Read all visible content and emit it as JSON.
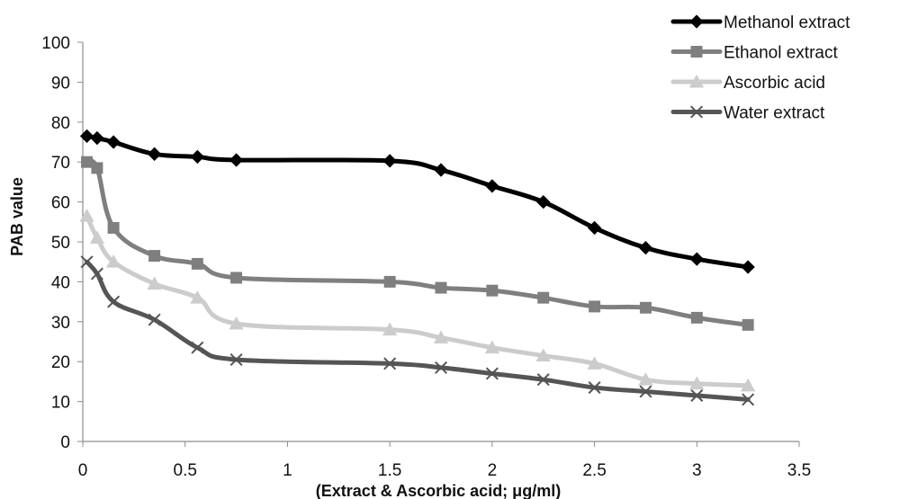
{
  "chart_data": {
    "type": "line",
    "title": "",
    "xlabel": "(Extract & Ascorbic acid; μg/ml)",
    "ylabel": "PAB value",
    "xlim": [
      0,
      3.5
    ],
    "ylim": [
      0,
      100
    ],
    "xticks": [
      "0",
      "0.5",
      "1",
      "1.5",
      "2",
      "2.5",
      "3",
      "3.5"
    ],
    "yticks": [
      "0",
      "10",
      "20",
      "30",
      "40",
      "50",
      "60",
      "70",
      "80",
      "90",
      "100"
    ],
    "grid": false,
    "legend_position": "top-right",
    "series": [
      {
        "name": "Methanol extract",
        "color": "#000000",
        "marker": "diamond",
        "x": [
          0.02,
          0.07,
          0.15,
          0.35,
          0.56,
          0.75,
          1.5,
          1.75,
          2.0,
          2.25,
          2.5,
          2.75,
          3.0,
          3.25
        ],
        "values": [
          76.5,
          76,
          75,
          72,
          71.3,
          70.5,
          70.3,
          68,
          64,
          60,
          53.5,
          48.5,
          45.7,
          43.7
        ]
      },
      {
        "name": "Ethanol extract",
        "color": "#7f7f7f",
        "marker": "square",
        "x": [
          0.02,
          0.07,
          0.15,
          0.35,
          0.56,
          0.75,
          1.5,
          1.75,
          2.0,
          2.25,
          2.5,
          2.75,
          3.0,
          3.25
        ],
        "values": [
          70,
          68.5,
          53.5,
          46.5,
          44.5,
          41,
          40,
          38.5,
          37.8,
          36,
          33.8,
          33.5,
          31,
          29.2
        ]
      },
      {
        "name": "Ascorbic acid",
        "color": "#cccccc",
        "marker": "triangle",
        "x": [
          0.02,
          0.07,
          0.15,
          0.35,
          0.56,
          0.75,
          1.5,
          1.75,
          2.0,
          2.25,
          2.5,
          2.75,
          3.0,
          3.25
        ],
        "values": [
          56.5,
          51,
          45,
          39.5,
          36,
          29.5,
          28,
          26,
          23.5,
          21.5,
          19.5,
          15.5,
          14.5,
          14
        ]
      },
      {
        "name": "Water extract",
        "color": "#555555",
        "marker": "x",
        "x": [
          0.02,
          0.07,
          0.15,
          0.35,
          0.56,
          0.75,
          1.5,
          1.75,
          2.0,
          2.25,
          2.5,
          2.75,
          3.0,
          3.25
        ],
        "values": [
          45,
          42,
          35,
          30.5,
          23.5,
          20.5,
          19.5,
          18.5,
          17,
          15.5,
          13.5,
          12.5,
          11.5,
          10.5
        ]
      }
    ]
  }
}
